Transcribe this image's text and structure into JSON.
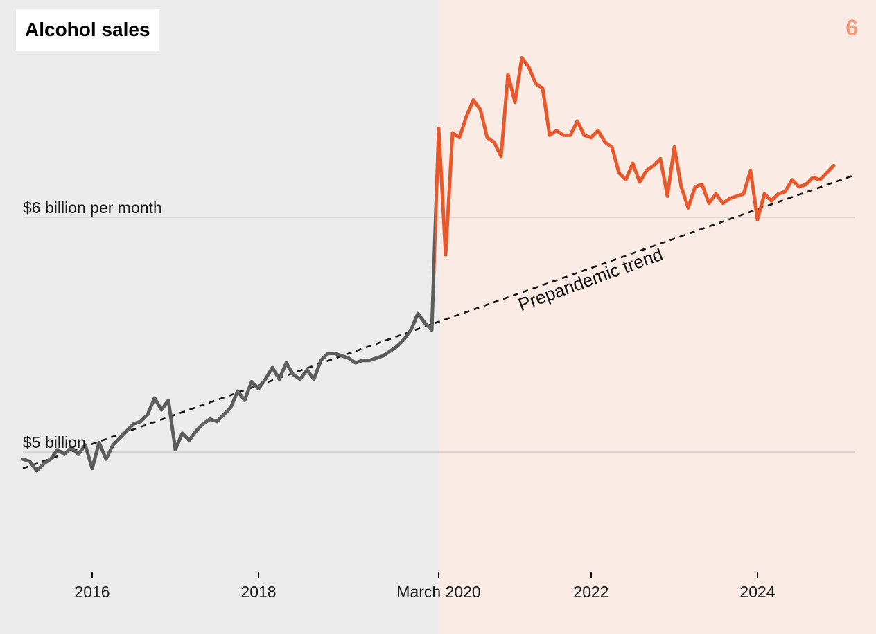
{
  "title": "Alcohol sales",
  "corner_number": "6",
  "colors": {
    "background_prepandemic": "#ececec",
    "background_pandemic": "#faece5",
    "line_prepandemic": "#5d5d5d",
    "line_pandemic": "#e8582b",
    "trend_line": "#141414",
    "gridline": "#d2cfcc",
    "corner_number": "#f4997a",
    "axis_text": "#1a1a1a",
    "tick_mark": "#111111"
  },
  "chart_data": {
    "type": "line",
    "title": "Alcohol sales",
    "x_start_month": "2015-03",
    "x_end_month": "2024-12",
    "x_step_months": 1,
    "pandemic_start_month": "2020-03",
    "values": [
      4.97,
      4.96,
      4.92,
      4.95,
      4.97,
      5.01,
      4.99,
      5.02,
      4.99,
      5.03,
      4.93,
      5.04,
      4.97,
      5.03,
      5.06,
      5.09,
      5.12,
      5.13,
      5.16,
      5.23,
      5.18,
      5.22,
      5.01,
      5.08,
      5.05,
      5.09,
      5.12,
      5.14,
      5.13,
      5.16,
      5.19,
      5.26,
      5.22,
      5.3,
      5.27,
      5.31,
      5.36,
      5.31,
      5.38,
      5.33,
      5.31,
      5.35,
      5.31,
      5.39,
      5.42,
      5.42,
      5.41,
      5.4,
      5.38,
      5.39,
      5.39,
      5.4,
      5.41,
      5.43,
      5.45,
      5.48,
      5.52,
      5.59,
      5.55,
      5.52,
      6.38,
      5.84,
      6.36,
      6.34,
      6.43,
      6.5,
      6.46,
      6.34,
      6.32,
      6.26,
      6.61,
      6.49,
      6.68,
      6.64,
      6.57,
      6.55,
      6.35,
      6.37,
      6.35,
      6.35,
      6.41,
      6.35,
      6.34,
      6.37,
      6.32,
      6.3,
      6.19,
      6.16,
      6.23,
      6.15,
      6.2,
      6.22,
      6.25,
      6.09,
      6.3,
      6.13,
      6.04,
      6.13,
      6.14,
      6.06,
      6.1,
      6.06,
      6.08,
      6.09,
      6.1,
      6.2,
      5.99,
      6.1,
      6.07,
      6.1,
      6.11,
      6.16,
      6.13,
      6.14,
      6.17,
      6.16,
      6.19,
      6.22
    ],
    "series": [
      {
        "name": "Alcohol sales (prepandemic)",
        "color": "#5d5d5d",
        "end_month": "2020-02"
      },
      {
        "name": "Alcohol sales (pandemic)",
        "color": "#e8582b",
        "start_month": "2020-02"
      }
    ],
    "y_gridlines": [
      {
        "label": "$6 billion per month",
        "value": 6
      },
      {
        "label": "$5 billion",
        "value": 5
      }
    ],
    "x_ticks": [
      {
        "label": "2016",
        "month": "2016-01"
      },
      {
        "label": "2018",
        "month": "2018-01"
      },
      {
        "label": "March 2020",
        "month": "2020-03"
      },
      {
        "label": "2022",
        "month": "2022-01"
      },
      {
        "label": "2024",
        "month": "2024-01"
      }
    ],
    "trend_line": {
      "label": "Prepandemic trend",
      "style": "dashed",
      "start": {
        "month": "2015-03",
        "value": 4.93
      },
      "end": {
        "month": "2025-03",
        "value": 6.18
      }
    },
    "ylim": [
      4.35,
      6.92
    ],
    "grid": true,
    "legend_position": "none"
  }
}
